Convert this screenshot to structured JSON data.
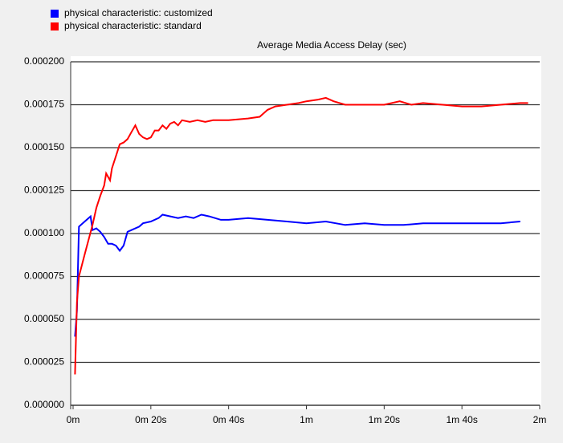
{
  "chart_data": {
    "type": "line",
    "title": "Average Media Access Delay (sec)",
    "legend": "top-left",
    "grid": true,
    "xlim": [
      0,
      120
    ],
    "xticks": [
      {
        "value": 0,
        "label": "0m"
      },
      {
        "value": 20,
        "label": "0m 20s"
      },
      {
        "value": 40,
        "label": "0m 40s"
      },
      {
        "value": 60,
        "label": "1m"
      },
      {
        "value": 80,
        "label": "1m 20s"
      },
      {
        "value": 100,
        "label": "1m 40s"
      },
      {
        "value": 120,
        "label": "2m"
      }
    ],
    "ylim": [
      0,
      0.0002
    ],
    "yticks": [
      {
        "value": 0,
        "label": "0.000000"
      },
      {
        "value": 2.5e-05,
        "label": "0.000025"
      },
      {
        "value": 5e-05,
        "label": "0.000050"
      },
      {
        "value": 7.5e-05,
        "label": "0.000075"
      },
      {
        "value": 0.0001,
        "label": "0.000100"
      },
      {
        "value": 0.000125,
        "label": "0.000125"
      },
      {
        "value": 0.00015,
        "label": "0.000150"
      },
      {
        "value": 0.000175,
        "label": "0.000175"
      },
      {
        "value": 0.0002,
        "label": "0.000200"
      }
    ],
    "series": [
      {
        "name": "physical characteristic: customized",
        "color": "#0000ff",
        "x": [
          0.5,
          1,
          1.5,
          3,
          4.5,
          5,
          6,
          7,
          8,
          9,
          10,
          11,
          12,
          13,
          14,
          15,
          17,
          18,
          20,
          22,
          23,
          25,
          27,
          29,
          31,
          33,
          35,
          38,
          40,
          45,
          50,
          55,
          60,
          65,
          70,
          75,
          80,
          85,
          90,
          95,
          100,
          105,
          110,
          115
        ],
        "values": [
          4e-05,
          5.5e-05,
          0.000104,
          0.000107,
          0.00011,
          0.000102,
          0.000103,
          0.000101,
          9.8e-05,
          9.4e-05,
          9.4e-05,
          9.3e-05,
          9e-05,
          9.3e-05,
          0.000101,
          0.000102,
          0.000104,
          0.000106,
          0.000107,
          0.000109,
          0.000111,
          0.00011,
          0.000109,
          0.00011,
          0.000109,
          0.000111,
          0.00011,
          0.000108,
          0.000108,
          0.000109,
          0.000108,
          0.000107,
          0.000106,
          0.000107,
          0.000105,
          0.000106,
          0.000105,
          0.000105,
          0.000106,
          0.000106,
          0.000106,
          0.000106,
          0.000106,
          0.000107
        ]
      },
      {
        "name": "physical characteristic: standard",
        "color": "#ff0000",
        "x": [
          0.5,
          1,
          1.5,
          3,
          5,
          6,
          7,
          8,
          8.5,
          9.5,
          10,
          11,
          12,
          13,
          14,
          15,
          16,
          17,
          18,
          19,
          20,
          21,
          22,
          23,
          24,
          25,
          26,
          27,
          28,
          30,
          32,
          34,
          36,
          40,
          45,
          48,
          50,
          52,
          55,
          58,
          60,
          63,
          65,
          67,
          70,
          75,
          80,
          84,
          87,
          90,
          95,
          100,
          105,
          110,
          115,
          117
        ],
        "values": [
          1.8e-05,
          6e-05,
          7.5e-05,
          8.8e-05,
          0.000105,
          0.000115,
          0.000122,
          0.000128,
          0.000135,
          0.000131,
          0.000138,
          0.000145,
          0.000152,
          0.000153,
          0.000155,
          0.000159,
          0.000163,
          0.000158,
          0.000156,
          0.000155,
          0.000156,
          0.00016,
          0.00016,
          0.000163,
          0.000161,
          0.000164,
          0.000165,
          0.000163,
          0.000166,
          0.000165,
          0.000166,
          0.000165,
          0.000166,
          0.000166,
          0.000167,
          0.000168,
          0.000172,
          0.000174,
          0.000175,
          0.000176,
          0.000177,
          0.000178,
          0.000179,
          0.000177,
          0.000175,
          0.000175,
          0.000175,
          0.000177,
          0.000175,
          0.000176,
          0.000175,
          0.000174,
          0.000174,
          0.000175,
          0.000176,
          0.000176
        ]
      }
    ]
  }
}
